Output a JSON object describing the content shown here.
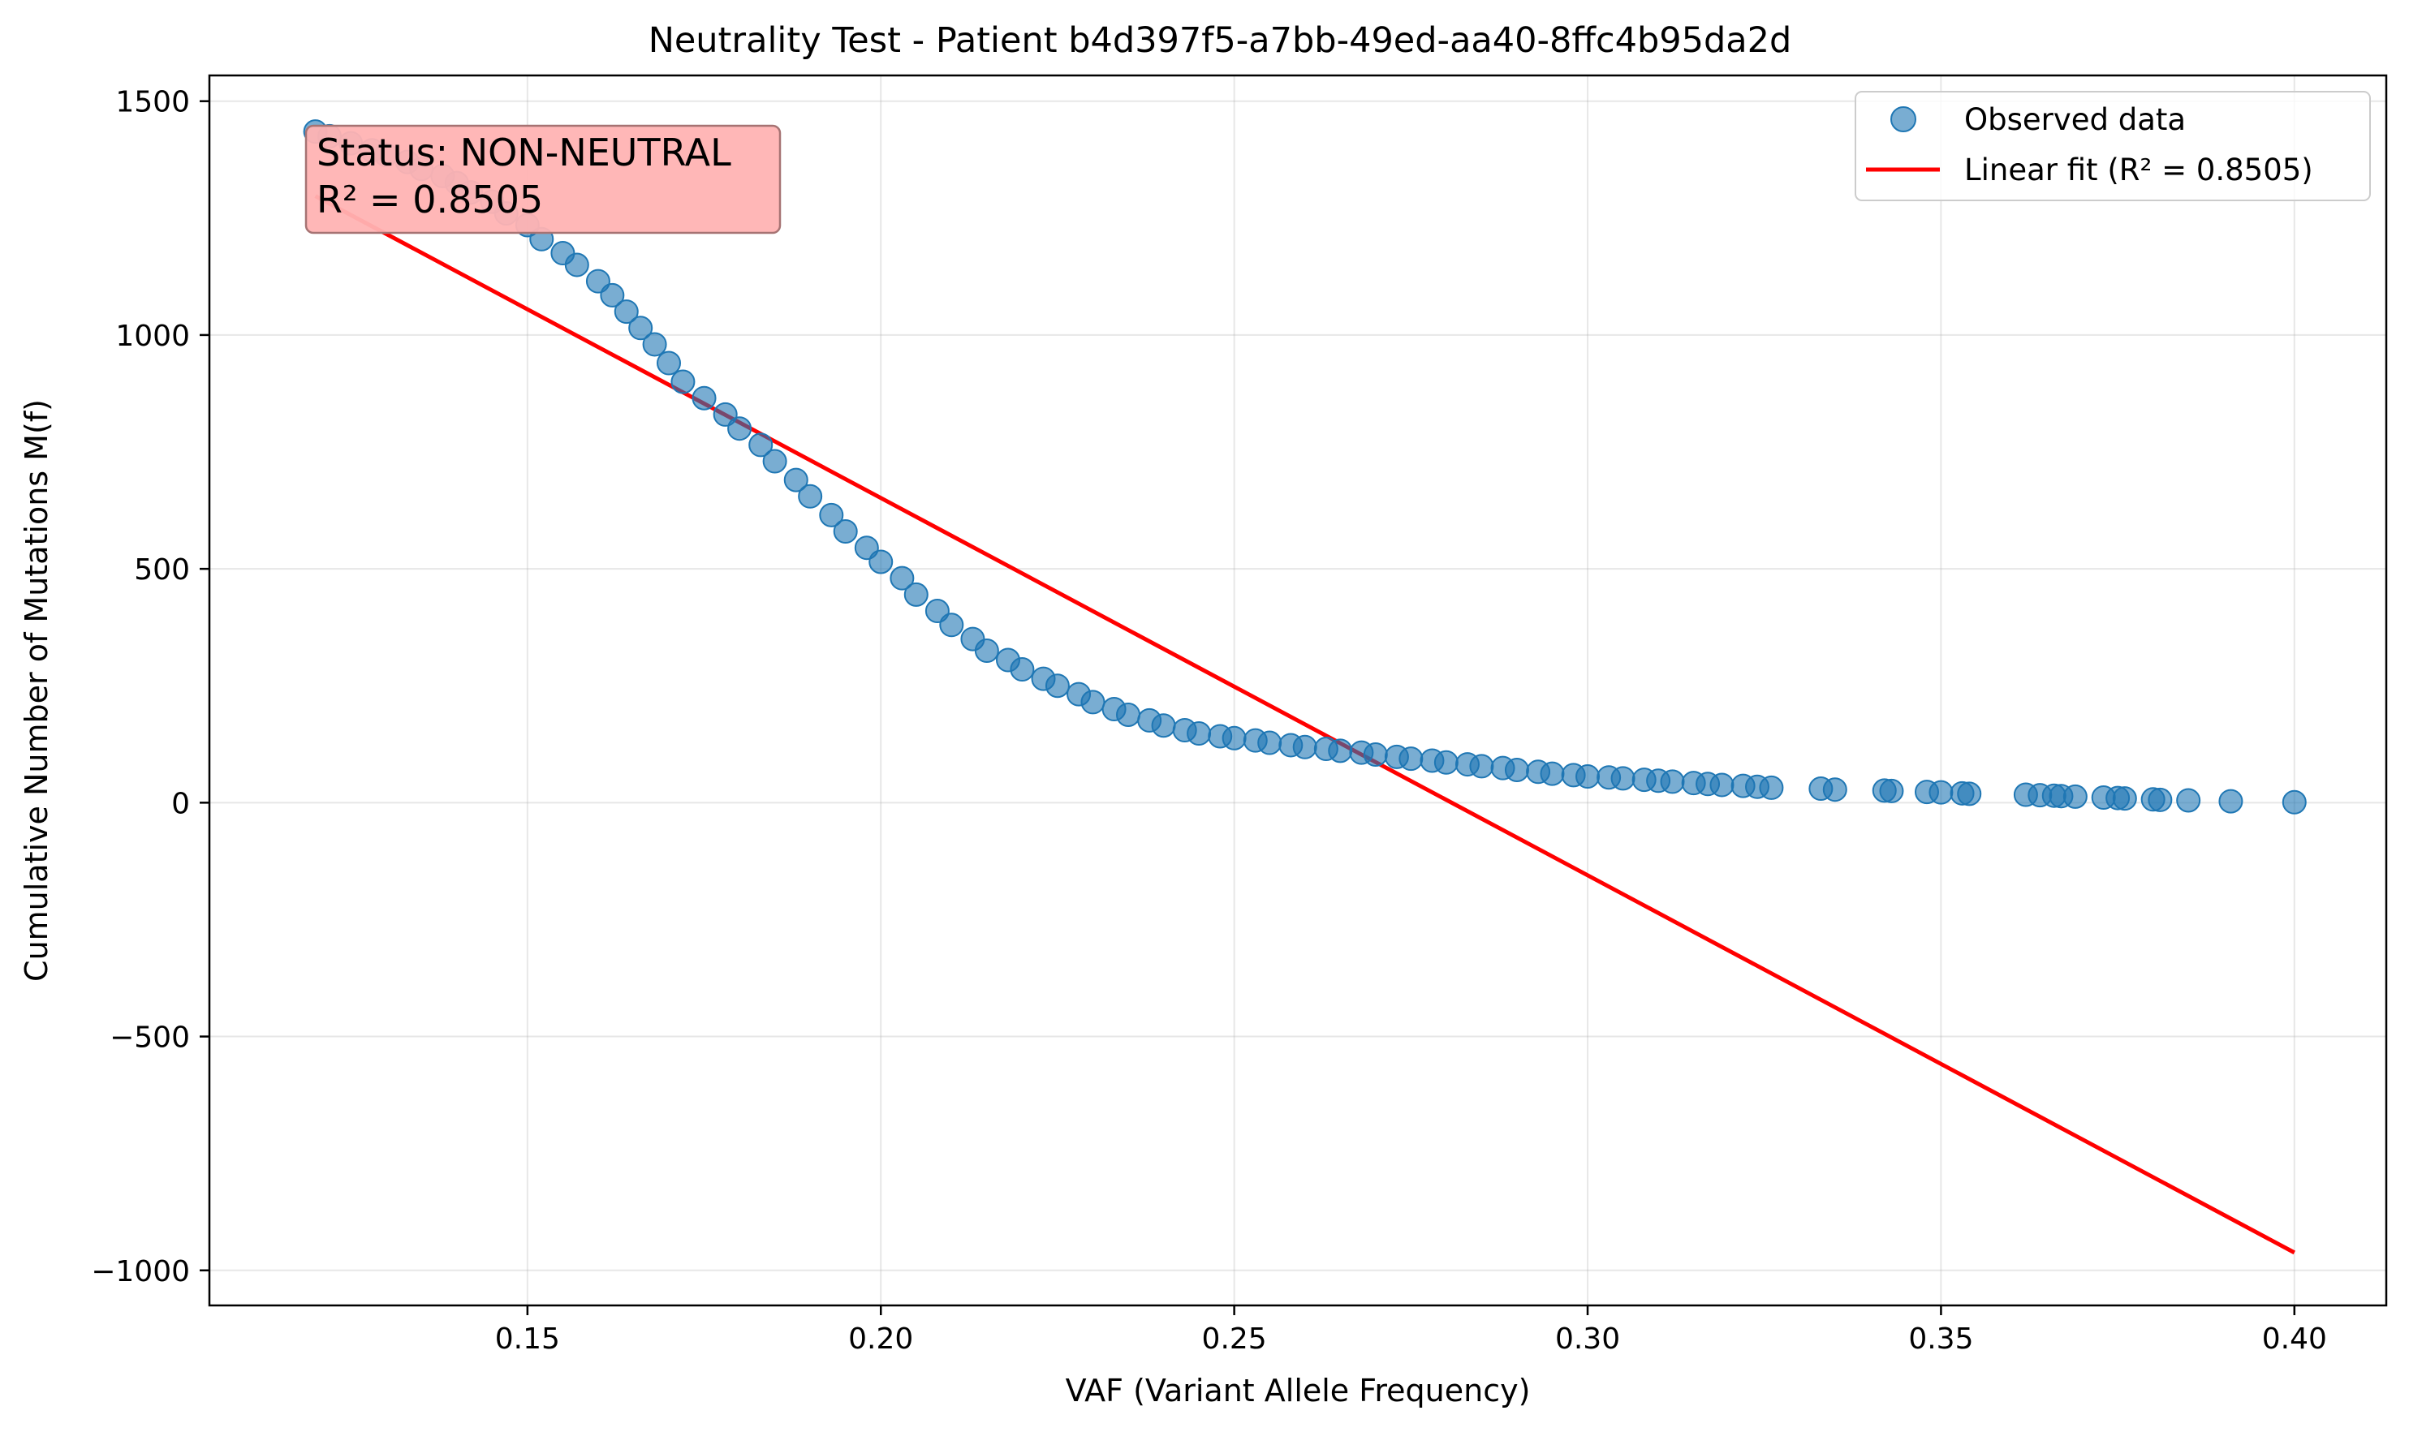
{
  "chart_data": {
    "type": "scatter",
    "title": "Neutrality Test - Patient b4d397f5-a7bb-49ed-aa40-8ffc4b95da2d",
    "xlabel": "VAF (Variant Allele Frequency)",
    "ylabel": "Cumulative Number of Mutations M(f)",
    "xlim": [
      0.105,
      0.413
    ],
    "ylim": [
      -1075,
      1555
    ],
    "xticks": [
      0.15,
      0.2,
      0.25,
      0.3,
      0.35,
      0.4
    ],
    "xtick_labels": [
      "0.15",
      "0.20",
      "0.25",
      "0.30",
      "0.35",
      "0.40"
    ],
    "yticks": [
      -1000,
      -500,
      0,
      500,
      1000,
      1500
    ],
    "ytick_labels": [
      "−1000",
      "−500",
      "0",
      "500",
      "1000",
      "1500"
    ],
    "grid": true,
    "legend_position": "top-right",
    "series": [
      {
        "name": "Observed data",
        "kind": "scatter",
        "color": "#1f77b4",
        "points": [
          [
            0.12,
            1435
          ],
          [
            0.122,
            1425
          ],
          [
            0.125,
            1410
          ],
          [
            0.128,
            1395
          ],
          [
            0.13,
            1385
          ],
          [
            0.133,
            1370
          ],
          [
            0.135,
            1355
          ],
          [
            0.138,
            1340
          ],
          [
            0.14,
            1325
          ],
          [
            0.142,
            1305
          ],
          [
            0.145,
            1285
          ],
          [
            0.147,
            1260
          ],
          [
            0.15,
            1235
          ],
          [
            0.152,
            1205
          ],
          [
            0.155,
            1175
          ],
          [
            0.157,
            1150
          ],
          [
            0.16,
            1115
          ],
          [
            0.162,
            1085
          ],
          [
            0.164,
            1050
          ],
          [
            0.166,
            1015
          ],
          [
            0.168,
            980
          ],
          [
            0.17,
            940
          ],
          [
            0.172,
            900
          ],
          [
            0.175,
            865
          ],
          [
            0.178,
            830
          ],
          [
            0.18,
            800
          ],
          [
            0.183,
            765
          ],
          [
            0.185,
            730
          ],
          [
            0.188,
            690
          ],
          [
            0.19,
            655
          ],
          [
            0.193,
            615
          ],
          [
            0.195,
            580
          ],
          [
            0.198,
            545
          ],
          [
            0.2,
            515
          ],
          [
            0.203,
            480
          ],
          [
            0.205,
            445
          ],
          [
            0.208,
            410
          ],
          [
            0.21,
            380
          ],
          [
            0.213,
            350
          ],
          [
            0.215,
            325
          ],
          [
            0.218,
            305
          ],
          [
            0.22,
            285
          ],
          [
            0.223,
            265
          ],
          [
            0.225,
            250
          ],
          [
            0.228,
            232
          ],
          [
            0.23,
            215
          ],
          [
            0.233,
            200
          ],
          [
            0.235,
            188
          ],
          [
            0.238,
            176
          ],
          [
            0.24,
            165
          ],
          [
            0.243,
            155
          ],
          [
            0.245,
            148
          ],
          [
            0.248,
            142
          ],
          [
            0.25,
            138
          ],
          [
            0.253,
            133
          ],
          [
            0.255,
            128
          ],
          [
            0.258,
            123
          ],
          [
            0.26,
            119
          ],
          [
            0.263,
            115
          ],
          [
            0.265,
            111
          ],
          [
            0.268,
            107
          ],
          [
            0.27,
            103
          ],
          [
            0.273,
            98
          ],
          [
            0.275,
            94
          ],
          [
            0.278,
            90
          ],
          [
            0.28,
            86
          ],
          [
            0.283,
            82
          ],
          [
            0.285,
            78
          ],
          [
            0.288,
            74
          ],
          [
            0.29,
            70
          ],
          [
            0.293,
            66
          ],
          [
            0.295,
            62
          ],
          [
            0.298,
            59
          ],
          [
            0.3,
            56
          ],
          [
            0.303,
            54
          ],
          [
            0.305,
            52
          ],
          [
            0.308,
            49
          ],
          [
            0.31,
            47
          ],
          [
            0.312,
            45
          ],
          [
            0.315,
            42
          ],
          [
            0.317,
            40
          ],
          [
            0.319,
            38
          ],
          [
            0.322,
            36
          ],
          [
            0.324,
            34
          ],
          [
            0.326,
            32
          ],
          [
            0.333,
            30
          ],
          [
            0.335,
            28
          ],
          [
            0.342,
            26
          ],
          [
            0.343,
            25
          ],
          [
            0.348,
            23
          ],
          [
            0.35,
            22
          ],
          [
            0.353,
            20
          ],
          [
            0.354,
            19
          ],
          [
            0.362,
            17
          ],
          [
            0.364,
            16
          ],
          [
            0.366,
            15
          ],
          [
            0.367,
            14
          ],
          [
            0.369,
            13
          ],
          [
            0.373,
            11
          ],
          [
            0.375,
            10
          ],
          [
            0.376,
            9
          ],
          [
            0.38,
            7
          ],
          [
            0.381,
            6
          ],
          [
            0.385,
            5
          ],
          [
            0.391,
            3
          ],
          [
            0.4,
            1
          ]
        ]
      },
      {
        "name": "Linear fit (R² = 0.8505)",
        "kind": "line",
        "color": "#ff0000",
        "points": [
          [
            0.12,
            1297
          ],
          [
            0.4,
            -962
          ]
        ]
      }
    ],
    "annotation": {
      "lines": [
        "Status: NON-NEUTRAL",
        "R² = 0.8505"
      ],
      "background": "#ffb3b3",
      "border": "#a67373"
    }
  }
}
